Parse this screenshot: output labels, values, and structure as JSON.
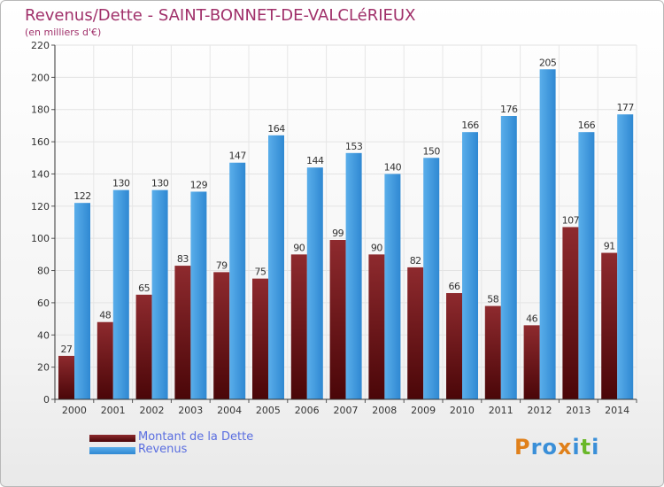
{
  "header": {
    "title": "Revenus/Dette - SAINT-BONNET-DE-VALCLéRIEUX",
    "subtitle": "(en milliers d'€)"
  },
  "legend": {
    "items": [
      {
        "label": "Montant de la Dette",
        "color": "#7a1a1e"
      },
      {
        "label": "Revenus",
        "color": "#3a97e0"
      }
    ]
  },
  "logo": {
    "letters": [
      "P",
      "r",
      "o",
      "x",
      "i",
      "t",
      "i"
    ],
    "colors": [
      "#e0801a",
      "#3a8fd8",
      "#3a8fd8",
      "#e0801a",
      "#3a8fd8",
      "#6ab82a",
      "#3a8fd8"
    ]
  },
  "chart_data": {
    "type": "bar",
    "categories": [
      "2000",
      "2001",
      "2002",
      "2003",
      "2004",
      "2005",
      "2006",
      "2007",
      "2008",
      "2009",
      "2010",
      "2011",
      "2012",
      "2013",
      "2014"
    ],
    "series": [
      {
        "name": "Montant de la Dette",
        "color": "#7a1a1e",
        "values": [
          27,
          48,
          65,
          83,
          79,
          75,
          90,
          99,
          90,
          82,
          66,
          58,
          46,
          107,
          91
        ]
      },
      {
        "name": "Revenus",
        "color": "#3a97e0",
        "values": [
          122,
          130,
          130,
          129,
          147,
          164,
          144,
          153,
          140,
          150,
          166,
          176,
          205,
          166,
          177
        ]
      }
    ],
    "ylim": [
      0,
      220
    ],
    "yticks": [
      0,
      20,
      40,
      60,
      80,
      100,
      120,
      140,
      160,
      180,
      200,
      220
    ],
    "grid": true,
    "legend_position": "bottom-left"
  }
}
